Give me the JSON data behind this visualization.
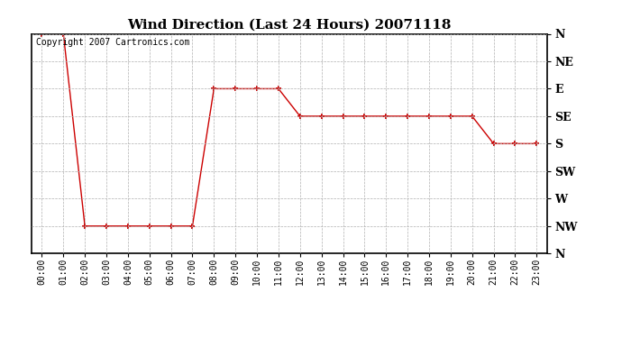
{
  "title": "Wind Direction (Last 24 Hours) 20071118",
  "copyright_text": "Copyright 2007 Cartronics.com",
  "background_color": "#ffffff",
  "line_color": "#cc0000",
  "marker_color": "#cc0000",
  "grid_color": "#b0b0b0",
  "ytick_labels": [
    "N",
    "NE",
    "E",
    "SE",
    "S",
    "SW",
    "W",
    "NW",
    "N"
  ],
  "ytick_values": [
    0,
    45,
    90,
    135,
    180,
    225,
    270,
    315,
    360
  ],
  "hours": [
    0,
    1,
    2,
    3,
    4,
    5,
    6,
    7,
    8,
    9,
    10,
    11,
    12,
    13,
    14,
    15,
    16,
    17,
    18,
    19,
    20,
    21,
    22,
    23
  ],
  "wind_directions": [
    0,
    0,
    315,
    315,
    315,
    315,
    315,
    315,
    90,
    90,
    90,
    90,
    135,
    135,
    135,
    135,
    135,
    135,
    135,
    135,
    135,
    180,
    180,
    180
  ],
  "xlabel_times": [
    "00:00",
    "01:00",
    "02:00",
    "03:00",
    "04:00",
    "05:00",
    "06:00",
    "07:00",
    "08:00",
    "09:00",
    "10:00",
    "11:00",
    "12:00",
    "13:00",
    "14:00",
    "15:00",
    "16:00",
    "17:00",
    "18:00",
    "19:00",
    "20:00",
    "21:00",
    "22:00",
    "23:00"
  ],
  "figsize": [
    6.9,
    3.75
  ],
  "dpi": 100
}
